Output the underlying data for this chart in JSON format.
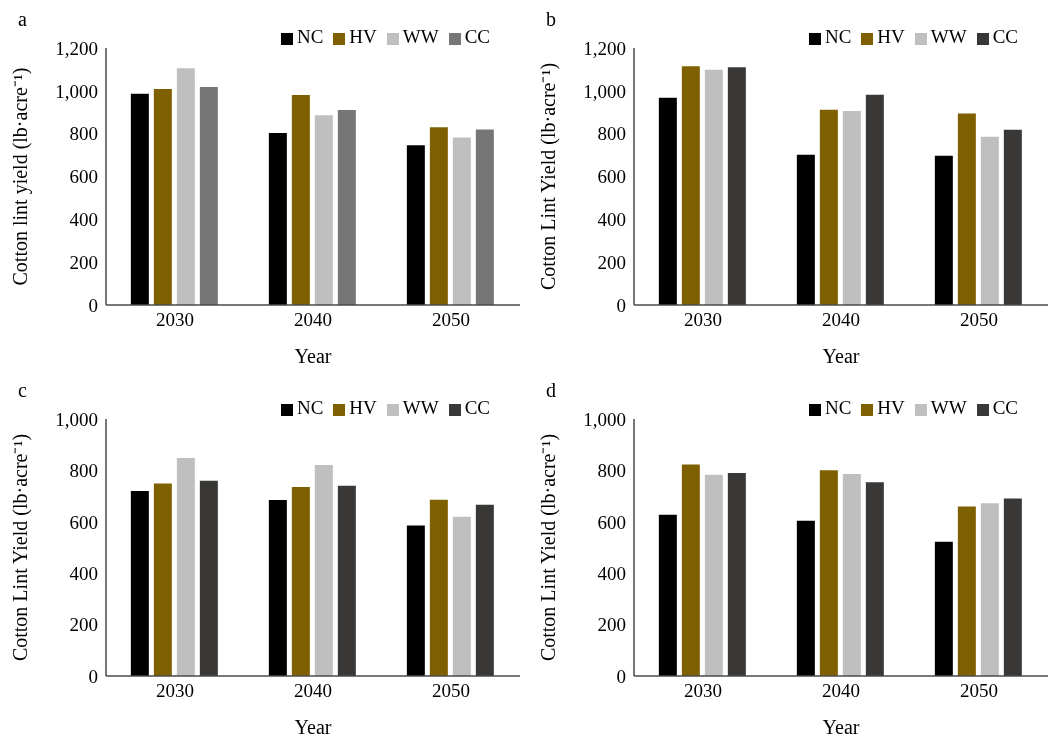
{
  "chart_data": [
    {
      "type": "bar",
      "title": "a",
      "xlabel": "Year",
      "ylabel": "Cotton lint yield (lb·acre⁻¹)",
      "categories": [
        "2030",
        "2040",
        "2050"
      ],
      "ylim": [
        0,
        1200
      ],
      "yticks": [
        {
          "value": 0,
          "label": "0"
        },
        {
          "value": 200,
          "label": "200"
        },
        {
          "value": 400,
          "label": "400"
        },
        {
          "value": 600,
          "label": "600"
        },
        {
          "value": 800,
          "label": "800"
        },
        {
          "value": 1000,
          "label": "1,000"
        },
        {
          "value": 1200,
          "label": "1,200"
        }
      ],
      "grid": false,
      "legend": "top right",
      "series": [
        {
          "name": "NC",
          "color": "#000000",
          "values": [
            986,
            803,
            746
          ]
        },
        {
          "name": "HV",
          "color": "#7f6000",
          "values": [
            1009,
            981,
            830
          ]
        },
        {
          "name": "WW",
          "color": "#bfbfbf",
          "values": [
            1105,
            886,
            782
          ]
        },
        {
          "name": "CC",
          "color": "#767676",
          "values": [
            1018,
            910,
            820
          ]
        }
      ]
    },
    {
      "type": "bar",
      "title": "b",
      "xlabel": "Year",
      "ylabel": "Cotton Lint Yield (lb·acre⁻¹)",
      "categories": [
        "2030",
        "2040",
        "2050"
      ],
      "ylim": [
        0,
        1200
      ],
      "yticks": [
        {
          "value": 0,
          "label": "0"
        },
        {
          "value": 200,
          "label": "200"
        },
        {
          "value": 400,
          "label": "400"
        },
        {
          "value": 600,
          "label": "600"
        },
        {
          "value": 800,
          "label": "800"
        },
        {
          "value": 1000,
          "label": "1,000"
        },
        {
          "value": 1200,
          "label": "1,200"
        }
      ],
      "grid": false,
      "legend": "top right",
      "series": [
        {
          "name": "NC",
          "color": "#000000",
          "values": [
            968,
            702,
            697
          ]
        },
        {
          "name": "HV",
          "color": "#7f6000",
          "values": [
            1115,
            912,
            894
          ]
        },
        {
          "name": "WW",
          "color": "#bfbfbf",
          "values": [
            1098,
            906,
            786
          ]
        },
        {
          "name": "CC",
          "color": "#3a3836",
          "values": [
            1110,
            982,
            818
          ]
        }
      ]
    },
    {
      "type": "bar",
      "title": "c",
      "xlabel": "Year",
      "ylabel": "Cotton Lint Yield (lb·acre⁻¹)",
      "categories": [
        "2030",
        "2040",
        "2050"
      ],
      "ylim": [
        0,
        1000
      ],
      "yticks": [
        {
          "value": 0,
          "label": "0"
        },
        {
          "value": 200,
          "label": "200"
        },
        {
          "value": 400,
          "label": "400"
        },
        {
          "value": 600,
          "label": "600"
        },
        {
          "value": 800,
          "label": "800"
        },
        {
          "value": 1000,
          "label": "1,000"
        }
      ],
      "grid": false,
      "legend": "top right",
      "series": [
        {
          "name": "NC",
          "color": "#000000",
          "values": [
            720,
            685,
            586
          ]
        },
        {
          "name": "HV",
          "color": "#7f6000",
          "values": [
            749,
            735,
            686
          ]
        },
        {
          "name": "WW",
          "color": "#bfbfbf",
          "values": [
            848,
            821,
            620
          ]
        },
        {
          "name": "CC",
          "color": "#3a3836",
          "values": [
            760,
            740,
            666
          ]
        }
      ]
    },
    {
      "type": "bar",
      "title": "d",
      "xlabel": "Year",
      "ylabel": "Cotton Lint Yield (lb·acre⁻¹)",
      "categories": [
        "2030",
        "2040",
        "2050"
      ],
      "ylim": [
        0,
        1000
      ],
      "yticks": [
        {
          "value": 0,
          "label": "0"
        },
        {
          "value": 200,
          "label": "200"
        },
        {
          "value": 400,
          "label": "400"
        },
        {
          "value": 600,
          "label": "600"
        },
        {
          "value": 800,
          "label": "800"
        },
        {
          "value": 1000,
          "label": "1,000"
        }
      ],
      "grid": false,
      "legend": "top right",
      "series": [
        {
          "name": "NC",
          "color": "#000000",
          "values": [
            627,
            604,
            522
          ]
        },
        {
          "name": "HV",
          "color": "#7f6000",
          "values": [
            823,
            801,
            660
          ]
        },
        {
          "name": "WW",
          "color": "#bfbfbf",
          "values": [
            783,
            786,
            672
          ]
        },
        {
          "name": "CC",
          "color": "#3a3836",
          "values": [
            790,
            754,
            691
          ]
        }
      ]
    }
  ]
}
